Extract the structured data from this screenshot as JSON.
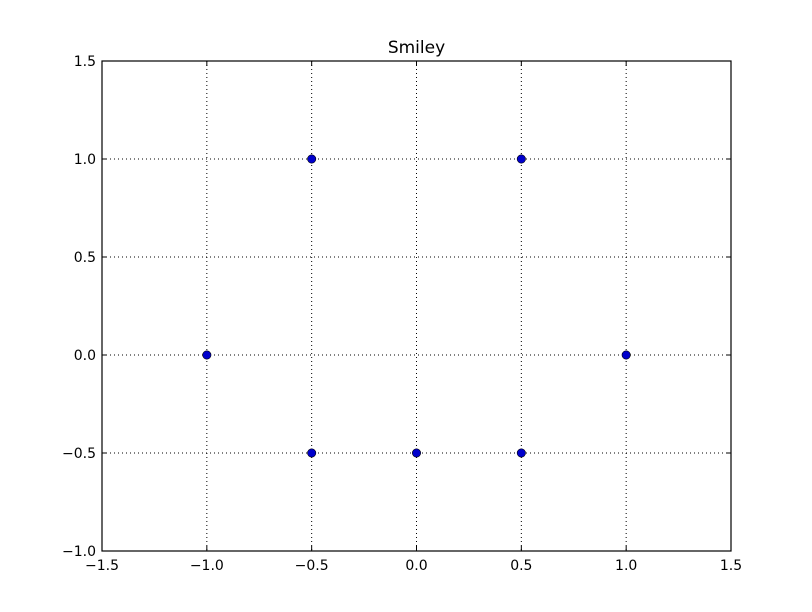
{
  "chart_data": {
    "type": "scatter",
    "title": "Smiley",
    "xlabel": "",
    "ylabel": "",
    "xlim": [
      -1.5,
      1.5
    ],
    "ylim": [
      -1.0,
      1.5
    ],
    "xticks": [
      -1.5,
      -1.0,
      -0.5,
      0.0,
      0.5,
      1.0,
      1.5
    ],
    "xtick_labels": [
      "−1.5",
      "−1.0",
      "−0.5",
      "0.0",
      "0.5",
      "1.0",
      "1.5"
    ],
    "yticks": [
      -1.0,
      -0.5,
      0.0,
      0.5,
      1.0,
      1.5
    ],
    "ytick_labels": [
      "−1.0",
      "−0.5",
      "0.0",
      "0.5",
      "1.0",
      "1.5"
    ],
    "grid": true,
    "marker_color": "#0000cc",
    "series": [
      {
        "x": [
          -0.5,
          0.5,
          -1.0,
          1.0,
          -0.5,
          0.0,
          0.5
        ],
        "y": [
          1.0,
          1.0,
          0.0,
          0.0,
          -0.5,
          -0.5,
          -0.5
        ]
      }
    ]
  }
}
